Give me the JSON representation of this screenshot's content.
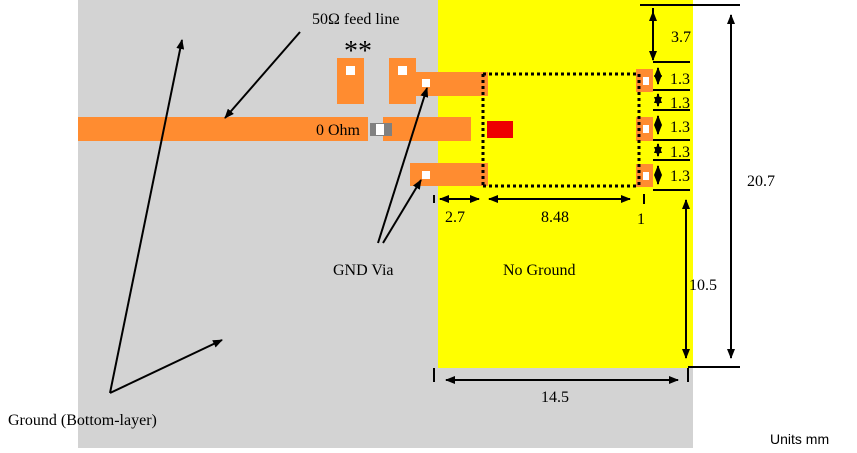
{
  "labels": {
    "feed_line": "50Ω feed line",
    "asterisks": "**",
    "zero_ohm": "0 Ohm",
    "gnd_via": "GND Via",
    "no_ground": "No Ground",
    "ground_bottom": "Ground (Bottom-layer)",
    "units": "Units mm"
  },
  "dimensions": {
    "d_3_7": "3.7",
    "d_1_3_a": "1.3",
    "d_1_3_b": "1.3",
    "d_1_3_c": "1.3",
    "d_1_3_d": "1.3",
    "d_1_3_e": "1.3",
    "d_20_7": "20.7",
    "d_10_5": "10.5",
    "d_2_7": "2.7",
    "d_8_48": "8.48",
    "d_1": "1",
    "d_14_5": "14.5"
  },
  "colors": {
    "ground": "#d3d3d3",
    "no_ground_area": "#ffff00",
    "copper": "#ff8c30",
    "antenna_feed_pad": "#ee0000",
    "resistor": "#808080",
    "line": "#000000"
  }
}
